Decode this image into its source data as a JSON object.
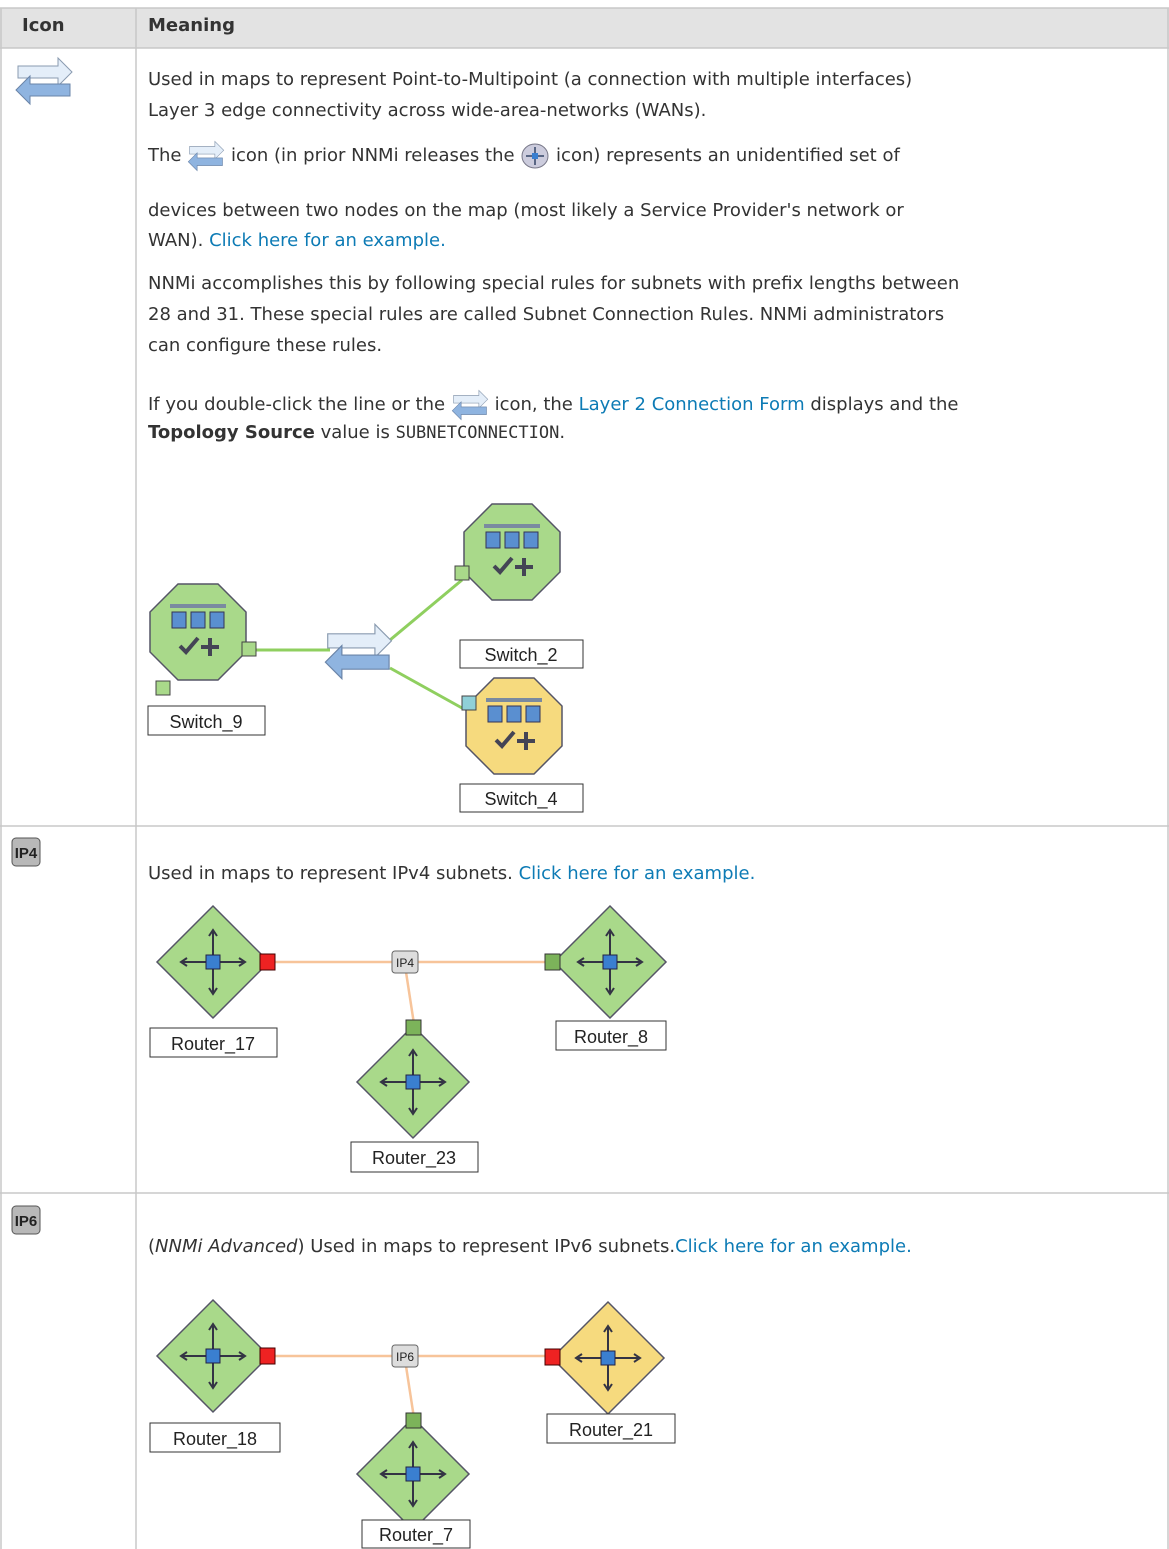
{
  "table": {
    "header": [
      "Icon",
      "Meaning"
    ],
    "rows": [
      {
        "paragraphs": [
          [
            "Used in maps to represent Point-to-Multipoint (a connection with multiple interfaces)",
            "Layer 3 edge connectivity across wide-area-networks (WANs)."
          ],
          [
            "The",
            "icon (in prior NNMi releases the",
            "icon) represents an unidentified set of",
            "devices between two nodes on the map (most likely a Service Provider's network or",
            "WAN).",
            "Click here for an example."
          ],
          [
            "NNMi accomplishes this by following special rules for subnets with prefix lengths between",
            "28 and 31. These special rules are called Subnet Connection Rules. NNMi administrators",
            "can configure these rules."
          ],
          [
            "If you double-click the line or the",
            "icon, the",
            "Layer 2 Connection Form",
            "displays and the",
            "Topology Source",
            "value is",
            "SUBNETCONNECTION",
            "."
          ]
        ],
        "diagram": {
          "nodes": [
            "Switch_9",
            "Switch_2",
            "Switch_4"
          ]
        }
      },
      {
        "icon_label": "IP4",
        "paragraphs": [
          [
            "Used in maps to represent IPv4 subnets.",
            "Click here for an example."
          ]
        ],
        "diagram": {
          "subnet": "IP4",
          "nodes": [
            "Router_17",
            "Router_8",
            "Router_23"
          ]
        }
      },
      {
        "icon_label": "IP6",
        "paragraphs": [
          [
            "(",
            "NNMi Advanced",
            ") Used in maps to represent IPv6 subnets.",
            "Click here for an example."
          ]
        ],
        "diagram": {
          "subnet": "IP6",
          "nodes": [
            "Router_18",
            "Router_21",
            "Router_7"
          ]
        }
      }
    ]
  }
}
